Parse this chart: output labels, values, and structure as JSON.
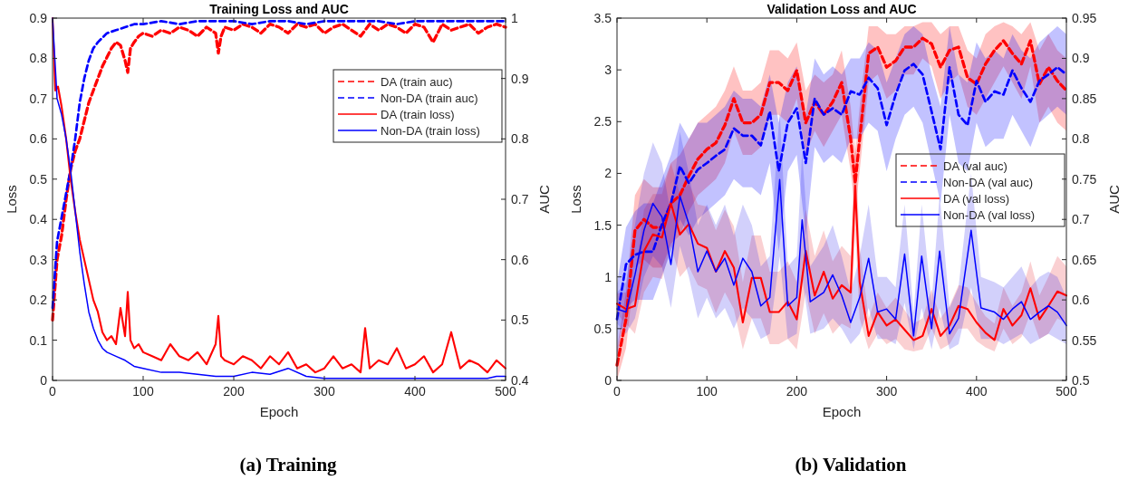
{
  "chart_data": [
    {
      "type": "line",
      "title": "Training Loss and AUC",
      "xlabel": "Epoch",
      "ylabel": "Loss",
      "y2label": "AUC",
      "annotations": [
        "(a) Training"
      ],
      "xlim": [
        0,
        500
      ],
      "xticks": [
        0,
        100,
        200,
        300,
        400,
        500
      ],
      "ylim": [
        0,
        0.9
      ],
      "yticks": [
        0,
        0.1,
        0.2,
        0.3,
        0.4,
        0.5,
        0.6,
        0.7,
        0.8,
        0.9
      ],
      "y2lim": [
        0.4,
        1
      ],
      "y2ticks": [
        0.4,
        0.5,
        0.6,
        0.7,
        0.8,
        0.9,
        1
      ],
      "legend": "top right",
      "grid": false,
      "series": [
        {
          "name": "DA (train auc)",
          "color": "#ff0000",
          "axis": "y2",
          "line_style": "dashed",
          "x": [
            0,
            5,
            10,
            15,
            20,
            25,
            30,
            35,
            40,
            45,
            50,
            55,
            60,
            65,
            70,
            75,
            80,
            83,
            86,
            90,
            95,
            100,
            110,
            120,
            130,
            140,
            150,
            160,
            170,
            180,
            183,
            186,
            190,
            200,
            210,
            220,
            230,
            240,
            250,
            260,
            270,
            280,
            290,
            300,
            310,
            320,
            330,
            340,
            350,
            360,
            370,
            380,
            390,
            400,
            410,
            420,
            430,
            440,
            450,
            460,
            470,
            480,
            490,
            500
          ],
          "values": [
            0.5,
            0.6,
            0.64,
            0.7,
            0.75,
            0.78,
            0.8,
            0.83,
            0.86,
            0.88,
            0.9,
            0.92,
            0.935,
            0.95,
            0.96,
            0.955,
            0.93,
            0.91,
            0.95,
            0.96,
            0.97,
            0.975,
            0.97,
            0.98,
            0.975,
            0.985,
            0.98,
            0.97,
            0.985,
            0.975,
            0.942,
            0.97,
            0.985,
            0.98,
            0.99,
            0.985,
            0.975,
            0.99,
            0.985,
            0.975,
            0.99,
            0.985,
            0.99,
            0.975,
            0.985,
            0.99,
            0.98,
            0.97,
            0.99,
            0.98,
            0.99,
            0.985,
            0.975,
            0.99,
            0.985,
            0.96,
            0.99,
            0.98,
            0.985,
            0.99,
            0.975,
            0.985,
            0.99,
            0.985
          ]
        },
        {
          "name": "Non-DA (train auc)",
          "color": "#0000ff",
          "axis": "y2",
          "line_style": "dashed",
          "x": [
            0,
            5,
            10,
            15,
            20,
            25,
            30,
            35,
            40,
            45,
            50,
            60,
            70,
            80,
            90,
            100,
            120,
            140,
            160,
            180,
            200,
            220,
            240,
            260,
            280,
            300,
            320,
            340,
            360,
            380,
            400,
            420,
            440,
            460,
            480,
            500
          ],
          "values": [
            0.52,
            0.63,
            0.67,
            0.71,
            0.75,
            0.8,
            0.86,
            0.9,
            0.93,
            0.95,
            0.96,
            0.975,
            0.98,
            0.985,
            0.99,
            0.99,
            0.995,
            0.99,
            0.995,
            0.995,
            0.995,
            0.99,
            0.995,
            0.995,
            0.99,
            0.995,
            0.995,
            0.995,
            0.995,
            0.99,
            0.995,
            0.995,
            0.995,
            0.995,
            0.995,
            0.995
          ]
        },
        {
          "name": "DA (train loss)",
          "color": "#ff0000",
          "line_style": "solid",
          "x": [
            0,
            3,
            6,
            10,
            15,
            20,
            25,
            30,
            35,
            40,
            45,
            50,
            55,
            60,
            65,
            70,
            75,
            80,
            83,
            86,
            90,
            95,
            100,
            110,
            120,
            130,
            140,
            150,
            160,
            170,
            180,
            183,
            186,
            190,
            200,
            210,
            220,
            230,
            240,
            250,
            260,
            270,
            280,
            290,
            300,
            310,
            320,
            330,
            340,
            345,
            350,
            360,
            370,
            380,
            390,
            400,
            410,
            420,
            430,
            440,
            450,
            460,
            470,
            480,
            490,
            500
          ],
          "values": [
            0.9,
            0.72,
            0.73,
            0.68,
            0.6,
            0.5,
            0.42,
            0.35,
            0.3,
            0.25,
            0.2,
            0.17,
            0.12,
            0.1,
            0.11,
            0.09,
            0.18,
            0.11,
            0.22,
            0.1,
            0.08,
            0.09,
            0.07,
            0.06,
            0.05,
            0.09,
            0.06,
            0.05,
            0.07,
            0.04,
            0.09,
            0.16,
            0.06,
            0.05,
            0.04,
            0.06,
            0.05,
            0.03,
            0.06,
            0.04,
            0.07,
            0.03,
            0.04,
            0.02,
            0.03,
            0.06,
            0.03,
            0.04,
            0.02,
            0.13,
            0.03,
            0.05,
            0.04,
            0.08,
            0.03,
            0.04,
            0.06,
            0.02,
            0.04,
            0.12,
            0.03,
            0.05,
            0.04,
            0.02,
            0.05,
            0.03
          ]
        },
        {
          "name": "Non-DA (train loss)",
          "color": "#0000ff",
          "line_style": "solid",
          "x": [
            0,
            5,
            10,
            15,
            20,
            25,
            30,
            35,
            40,
            45,
            50,
            55,
            60,
            70,
            80,
            90,
            100,
            120,
            140,
            160,
            180,
            200,
            220,
            240,
            260,
            280,
            300,
            320,
            340,
            360,
            380,
            400,
            420,
            440,
            460,
            480,
            490,
            500
          ],
          "values": [
            0.9,
            0.7,
            0.66,
            0.6,
            0.52,
            0.42,
            0.32,
            0.24,
            0.17,
            0.13,
            0.1,
            0.08,
            0.07,
            0.06,
            0.05,
            0.035,
            0.03,
            0.02,
            0.02,
            0.015,
            0.01,
            0.01,
            0.02,
            0.015,
            0.03,
            0.01,
            0.005,
            0.005,
            0.005,
            0.005,
            0.005,
            0.005,
            0.005,
            0.005,
            0.005,
            0.005,
            0.01,
            0.01
          ]
        }
      ]
    },
    {
      "type": "line",
      "title": "Validation Loss and AUC",
      "xlabel": "Epoch",
      "ylabel": "Loss",
      "y2label": "AUC",
      "annotations": [
        "(b) Validation"
      ],
      "xlim": [
        0,
        500
      ],
      "xticks": [
        0,
        100,
        200,
        300,
        400,
        500
      ],
      "ylim": [
        0,
        3.5
      ],
      "yticks": [
        0,
        0.5,
        1,
        1.5,
        2,
        2.5,
        3,
        3.5
      ],
      "y2lim": [
        0.5,
        0.95
      ],
      "y2ticks": [
        0.5,
        0.55,
        0.6,
        0.65,
        0.7,
        0.75,
        0.8,
        0.85,
        0.9,
        0.95
      ],
      "legend": "right",
      "grid": false,
      "series": [
        {
          "name": "DA (val auc)",
          "color": "#ff0000",
          "axis": "y2",
          "line_style": "dashed",
          "x": [
            0,
            10,
            20,
            30,
            40,
            50,
            60,
            70,
            80,
            90,
            100,
            110,
            120,
            130,
            140,
            150,
            160,
            170,
            180,
            190,
            200,
            210,
            220,
            230,
            240,
            250,
            260,
            265,
            270,
            280,
            290,
            300,
            310,
            320,
            330,
            340,
            350,
            360,
            370,
            380,
            390,
            400,
            410,
            420,
            430,
            440,
            450,
            460,
            470,
            480,
            490,
            500
          ],
          "values": [
            0.519,
            0.576,
            0.686,
            0.7,
            0.69,
            0.69,
            0.72,
            0.73,
            0.754,
            0.775,
            0.787,
            0.795,
            0.817,
            0.85,
            0.82,
            0.82,
            0.83,
            0.87,
            0.87,
            0.86,
            0.885,
            0.82,
            0.846,
            0.83,
            0.846,
            0.87,
            0.8,
            0.745,
            0.8,
            0.906,
            0.914,
            0.889,
            0.897,
            0.914,
            0.914,
            0.925,
            0.918,
            0.889,
            0.91,
            0.914,
            0.876,
            0.868,
            0.893,
            0.91,
            0.922,
            0.906,
            0.893,
            0.922,
            0.868,
            0.889,
            0.872,
            0.86
          ],
          "lower": [
            0.5,
            0.54,
            0.64,
            0.65,
            0.64,
            0.64,
            0.67,
            0.68,
            0.71,
            0.73,
            0.74,
            0.75,
            0.77,
            0.81,
            0.78,
            0.78,
            0.79,
            0.83,
            0.83,
            0.82,
            0.85,
            0.78,
            0.81,
            0.79,
            0.81,
            0.83,
            0.76,
            0.71,
            0.76,
            0.87,
            0.88,
            0.85,
            0.86,
            0.88,
            0.88,
            0.9,
            0.89,
            0.85,
            0.87,
            0.88,
            0.84,
            0.83,
            0.85,
            0.87,
            0.89,
            0.87,
            0.85,
            0.89,
            0.82,
            0.84,
            0.82,
            0.81
          ],
          "upper": [
            0.54,
            0.61,
            0.73,
            0.75,
            0.74,
            0.74,
            0.77,
            0.78,
            0.8,
            0.82,
            0.83,
            0.84,
            0.86,
            0.89,
            0.86,
            0.86,
            0.87,
            0.91,
            0.91,
            0.9,
            0.92,
            0.86,
            0.88,
            0.87,
            0.88,
            0.91,
            0.84,
            0.78,
            0.84,
            0.94,
            0.94,
            0.93,
            0.93,
            0.94,
            0.94,
            0.945,
            0.945,
            0.93,
            0.94,
            0.94,
            0.91,
            0.9,
            0.93,
            0.94,
            0.945,
            0.94,
            0.93,
            0.945,
            0.91,
            0.93,
            0.91,
            0.9
          ]
        },
        {
          "name": "Non-DA (val auc)",
          "color": "#0000ff",
          "axis": "y2",
          "line_style": "dashed",
          "x": [
            0,
            10,
            20,
            30,
            40,
            50,
            60,
            70,
            80,
            90,
            100,
            110,
            120,
            130,
            140,
            150,
            160,
            170,
            180,
            190,
            200,
            210,
            220,
            230,
            240,
            250,
            260,
            270,
            280,
            290,
            300,
            310,
            320,
            330,
            340,
            350,
            360,
            370,
            380,
            390,
            400,
            410,
            420,
            430,
            440,
            450,
            460,
            470,
            480,
            490,
            500
          ],
          "values": [
            0.576,
            0.644,
            0.656,
            0.66,
            0.66,
            0.694,
            0.72,
            0.766,
            0.745,
            0.762,
            0.77,
            0.779,
            0.787,
            0.813,
            0.804,
            0.804,
            0.792,
            0.834,
            0.76,
            0.82,
            0.838,
            0.77,
            0.85,
            0.83,
            0.838,
            0.83,
            0.859,
            0.855,
            0.876,
            0.863,
            0.817,
            0.855,
            0.885,
            0.893,
            0.88,
            0.834,
            0.787,
            0.889,
            0.83,
            0.817,
            0.872,
            0.846,
            0.859,
            0.855,
            0.885,
            0.863,
            0.846,
            0.872,
            0.88,
            0.889,
            0.88
          ],
          "lower": [
            0.53,
            0.59,
            0.6,
            0.6,
            0.6,
            0.63,
            0.66,
            0.7,
            0.68,
            0.7,
            0.71,
            0.72,
            0.73,
            0.75,
            0.74,
            0.74,
            0.73,
            0.77,
            0.66,
            0.76,
            0.78,
            0.68,
            0.79,
            0.77,
            0.78,
            0.77,
            0.8,
            0.8,
            0.82,
            0.81,
            0.76,
            0.8,
            0.83,
            0.84,
            0.82,
            0.77,
            0.72,
            0.83,
            0.77,
            0.76,
            0.82,
            0.79,
            0.8,
            0.8,
            0.83,
            0.81,
            0.79,
            0.82,
            0.83,
            0.84,
            0.83
          ],
          "upper": [
            0.62,
            0.69,
            0.71,
            0.72,
            0.72,
            0.75,
            0.78,
            0.82,
            0.8,
            0.82,
            0.82,
            0.83,
            0.84,
            0.86,
            0.85,
            0.85,
            0.84,
            0.88,
            0.82,
            0.87,
            0.89,
            0.83,
            0.9,
            0.88,
            0.89,
            0.88,
            0.9,
            0.9,
            0.92,
            0.91,
            0.87,
            0.9,
            0.93,
            0.94,
            0.93,
            0.88,
            0.84,
            0.94,
            0.88,
            0.87,
            0.92,
            0.9,
            0.91,
            0.9,
            0.93,
            0.91,
            0.9,
            0.92,
            0.93,
            0.94,
            0.93
          ]
        },
        {
          "name": "DA (val loss)",
          "color": "#ff0000",
          "line_style": "solid",
          "x": [
            0,
            10,
            20,
            30,
            40,
            50,
            60,
            70,
            80,
            90,
            100,
            110,
            120,
            130,
            140,
            150,
            160,
            170,
            180,
            190,
            200,
            210,
            220,
            230,
            240,
            250,
            260,
            265,
            270,
            280,
            290,
            300,
            310,
            320,
            330,
            340,
            350,
            360,
            370,
            380,
            390,
            400,
            410,
            420,
            430,
            440,
            450,
            460,
            470,
            480,
            490,
            500
          ],
          "values": [
            0.74,
            0.69,
            0.72,
            1.25,
            1.41,
            1.38,
            1.71,
            1.41,
            1.51,
            1.32,
            1.28,
            1.05,
            1.25,
            1.09,
            0.56,
            0.99,
            0.99,
            0.66,
            0.66,
            0.76,
            0.59,
            1.25,
            0.82,
            1.05,
            0.79,
            0.92,
            0.85,
            1.88,
            0.95,
            0.43,
            0.66,
            0.53,
            0.59,
            0.49,
            0.39,
            0.43,
            0.69,
            0.43,
            0.53,
            0.72,
            0.69,
            0.56,
            0.46,
            0.39,
            0.69,
            0.53,
            0.63,
            0.89,
            0.59,
            0.72,
            0.86,
            0.82
          ],
          "lower": [
            0.64,
            0.55,
            0.45,
            0.85,
            1.0,
            0.98,
            1.3,
            1.0,
            1.1,
            0.92,
            0.88,
            0.65,
            0.85,
            0.69,
            0.3,
            0.6,
            0.6,
            0.35,
            0.35,
            0.4,
            0.3,
            0.85,
            0.45,
            0.65,
            0.45,
            0.55,
            0.5,
            1.45,
            0.6,
            0.3,
            0.45,
            0.35,
            0.4,
            0.3,
            0.28,
            0.3,
            0.5,
            0.3,
            0.35,
            0.5,
            0.5,
            0.38,
            0.32,
            0.28,
            0.5,
            0.35,
            0.42,
            0.65,
            0.4,
            0.45,
            0.6,
            0.55
          ],
          "upper": [
            0.84,
            0.85,
            1.0,
            1.65,
            1.8,
            1.8,
            2.1,
            1.8,
            1.9,
            1.7,
            1.68,
            1.45,
            1.65,
            1.49,
            0.95,
            1.4,
            1.4,
            1.05,
            1.05,
            1.15,
            0.95,
            1.65,
            1.2,
            1.45,
            1.15,
            1.3,
            1.2,
            2.4,
            1.3,
            0.6,
            0.85,
            0.7,
            0.8,
            0.68,
            0.55,
            0.6,
            0.88,
            0.6,
            0.72,
            0.92,
            0.9,
            0.75,
            0.62,
            0.55,
            0.9,
            0.72,
            0.85,
            1.15,
            0.82,
            1.0,
            1.2,
            1.1
          ]
        },
        {
          "name": "Non-DA (val loss)",
          "color": "#0000ff",
          "line_style": "solid",
          "x": [
            0,
            10,
            20,
            30,
            40,
            50,
            60,
            70,
            80,
            90,
            100,
            110,
            120,
            130,
            140,
            150,
            160,
            170,
            181,
            190,
            200,
            206,
            215,
            230,
            240,
            250,
            260,
            270,
            280,
            290,
            300,
            310,
            320,
            330,
            339,
            350,
            359,
            370,
            380,
            394,
            405,
            420,
            430,
            440,
            450,
            460,
            470,
            480,
            490,
            500
          ],
          "values": [
            0.69,
            0.66,
            1.02,
            1.45,
            1.71,
            1.58,
            1.12,
            1.78,
            1.51,
            1.05,
            1.25,
            1.05,
            1.18,
            0.92,
            1.18,
            1.05,
            0.72,
            0.8,
            1.94,
            0.72,
            0.8,
            1.55,
            0.76,
            0.85,
            1.02,
            0.82,
            0.56,
            0.8,
            1.18,
            0.66,
            0.69,
            0.59,
            1.22,
            0.43,
            1.2,
            0.5,
            1.25,
            0.45,
            0.6,
            1.45,
            0.7,
            0.66,
            0.59,
            0.69,
            0.76,
            0.59,
            0.66,
            0.72,
            0.66,
            0.53
          ],
          "lower": [
            0.55,
            0.45,
            0.6,
            1.0,
            1.2,
            1.1,
            0.7,
            1.3,
            1.0,
            0.6,
            0.8,
            0.6,
            0.7,
            0.5,
            0.7,
            0.6,
            0.4,
            0.45,
            1.2,
            0.4,
            0.45,
            1.0,
            0.45,
            0.5,
            0.6,
            0.5,
            0.35,
            0.45,
            0.7,
            0.4,
            0.4,
            0.35,
            0.75,
            0.3,
            0.7,
            0.3,
            0.7,
            0.3,
            0.35,
            0.9,
            0.4,
            0.4,
            0.35,
            0.4,
            0.45,
            0.35,
            0.4,
            0.45,
            0.4,
            0.35
          ],
          "upper": [
            0.85,
            0.95,
            1.5,
            2.0,
            2.3,
            2.1,
            1.6,
            2.4,
            2.0,
            1.5,
            1.7,
            1.5,
            1.7,
            1.4,
            1.7,
            1.5,
            1.1,
            1.2,
            2.6,
            1.1,
            1.2,
            2.2,
            1.1,
            1.3,
            1.5,
            1.2,
            0.85,
            1.2,
            1.7,
            1.0,
            1.0,
            0.9,
            1.7,
            0.65,
            1.7,
            0.75,
            1.8,
            0.7,
            0.9,
            2.0,
            1.0,
            0.95,
            0.9,
            1.0,
            1.1,
            0.9,
            1.0,
            1.05,
            1.0,
            0.8
          ]
        }
      ]
    }
  ]
}
